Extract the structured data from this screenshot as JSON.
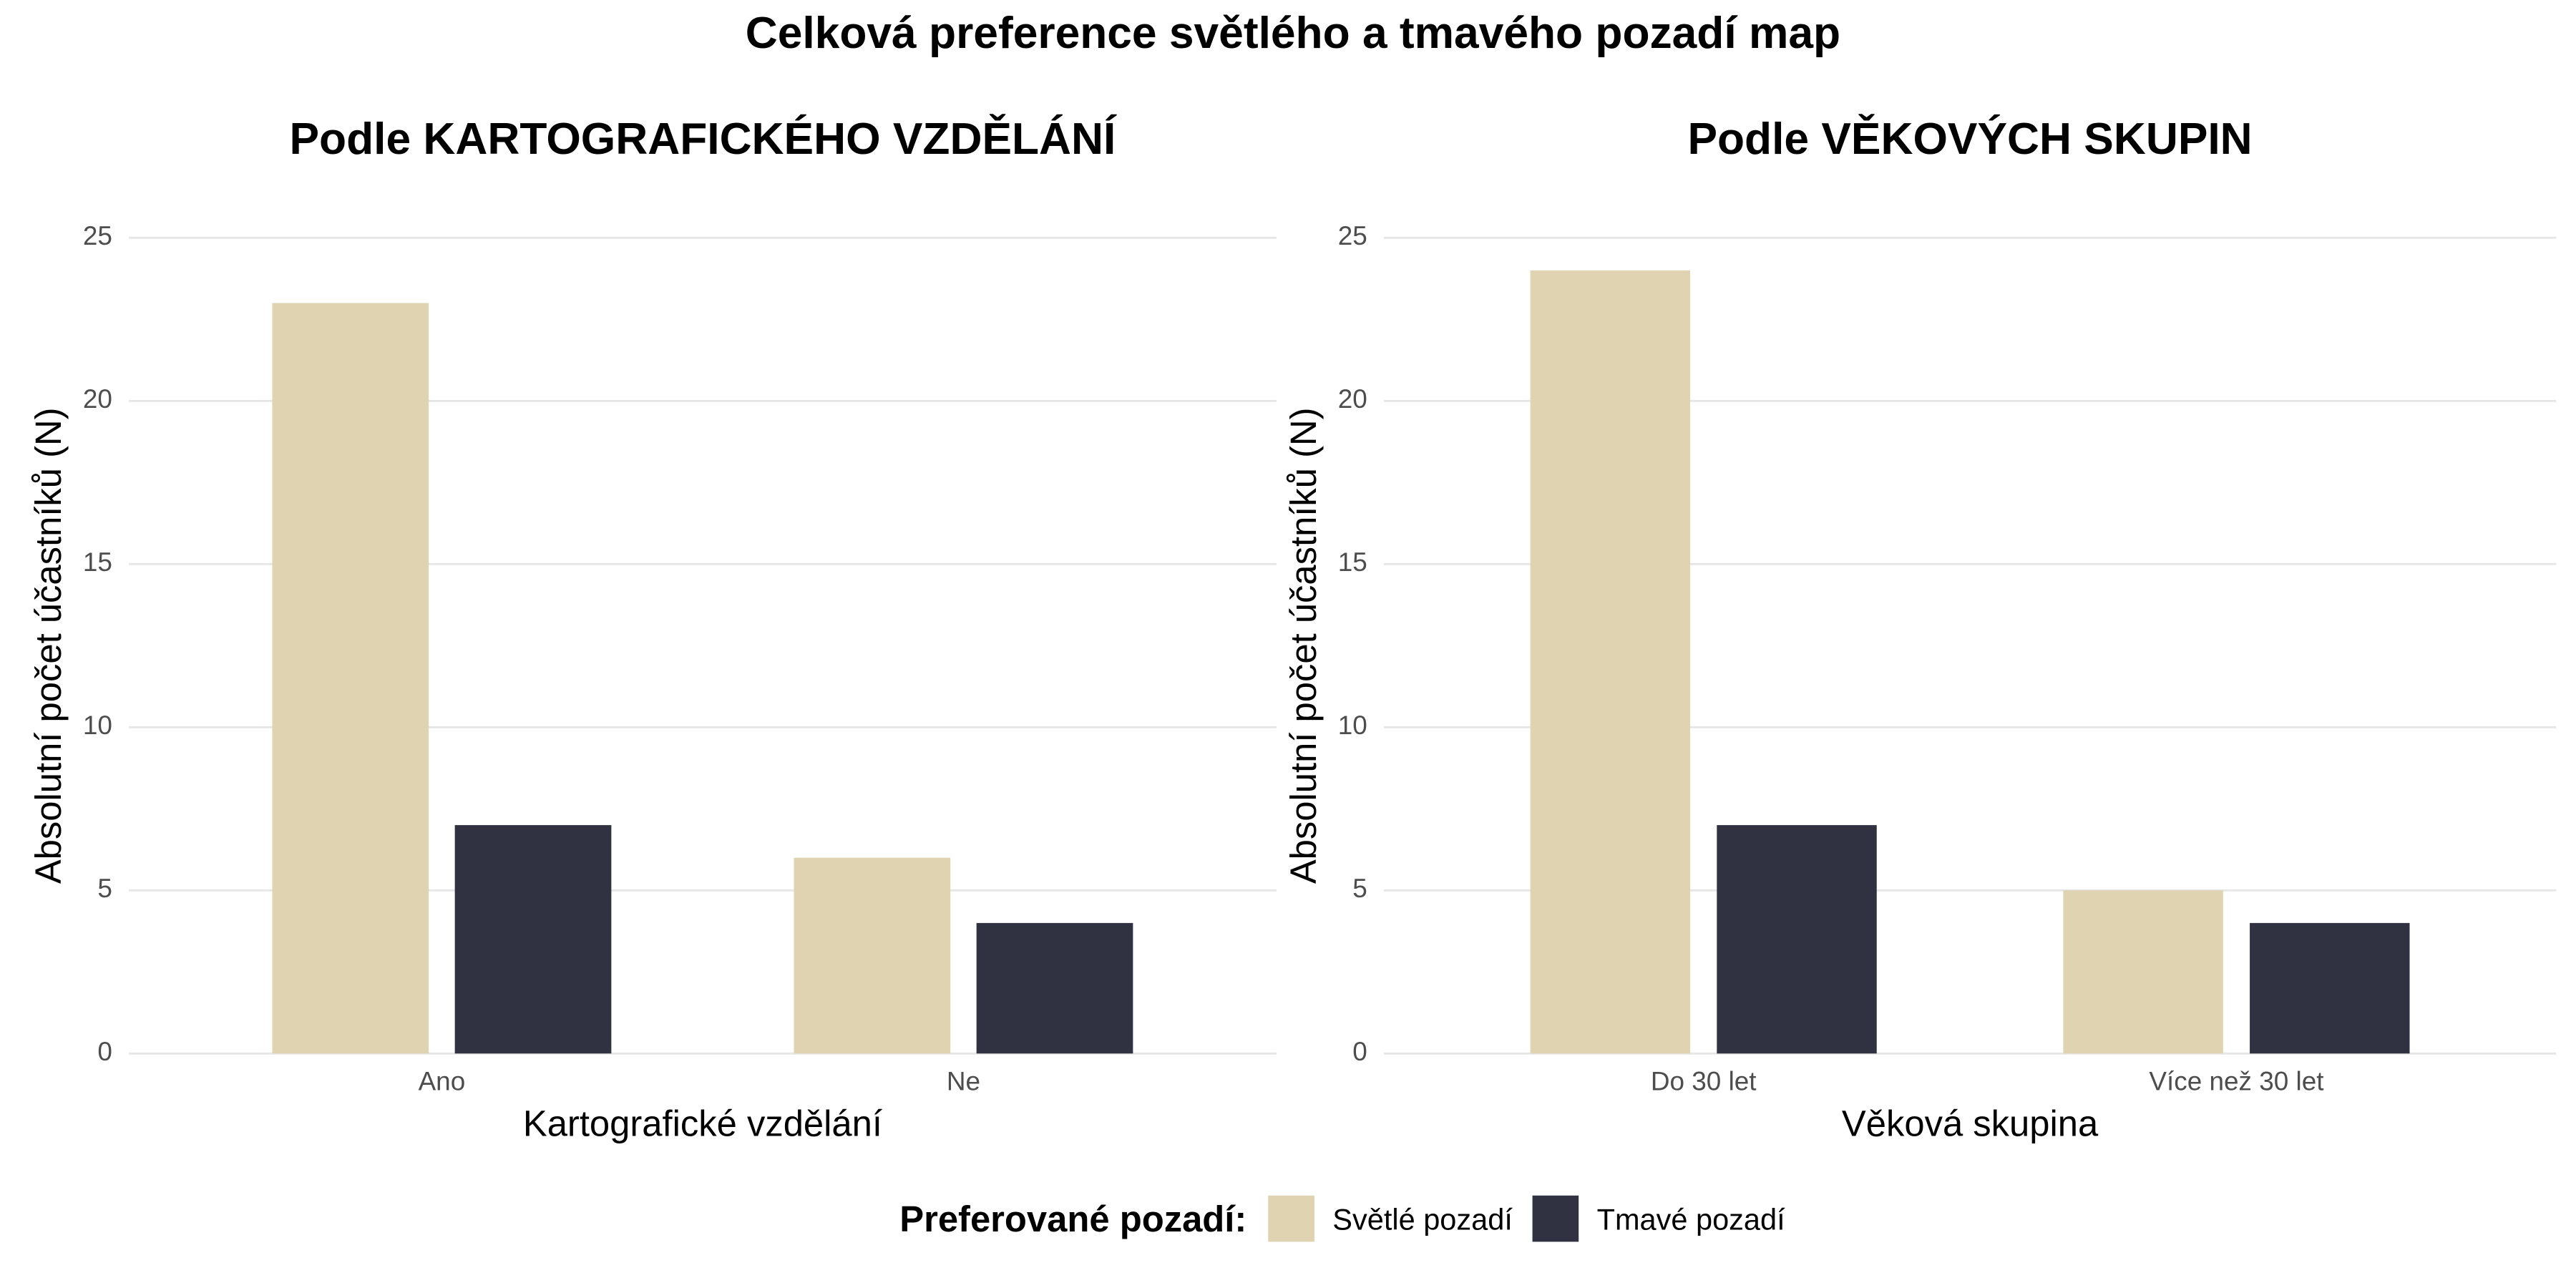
{
  "title": "Celková preference světlého a tmavého pozadí map",
  "legend_title": "Preferované pozadí:",
  "chart_data": [
    {
      "type": "bar",
      "title": "Podle KARTOGRAFICKÉHO VZDĚLÁNÍ",
      "x_label": "Kartografické vzdělání",
      "y_label": "Absolutní počet účastníků (N)",
      "categories": [
        "Ano",
        "Ne"
      ],
      "series": [
        {
          "name": "Světlé pozadí",
          "color": "#e0d3b2",
          "values": [
            23,
            6
          ]
        },
        {
          "name": "Tmavé pozadí",
          "color": "#303241",
          "values": [
            7,
            4
          ]
        }
      ],
      "ylim": [
        0,
        25
      ],
      "yticks": [
        0,
        5,
        10,
        15,
        20,
        25
      ],
      "grid": true
    },
    {
      "type": "bar",
      "title": "Podle VĚKOVÝCH SKUPIN",
      "x_label": "Věková skupina",
      "y_label": "Absolutní počet účastníků (N)",
      "categories": [
        "Do 30 let",
        "Více než 30 let"
      ],
      "series": [
        {
          "name": "Světlé pozadí",
          "color": "#e0d3b2",
          "values": [
            24,
            5
          ]
        },
        {
          "name": "Tmavé pozadí",
          "color": "#303241",
          "values": [
            7,
            4
          ]
        }
      ],
      "ylim": [
        0,
        25
      ],
      "yticks": [
        0,
        5,
        10,
        15,
        20,
        25
      ],
      "grid": true
    }
  ]
}
